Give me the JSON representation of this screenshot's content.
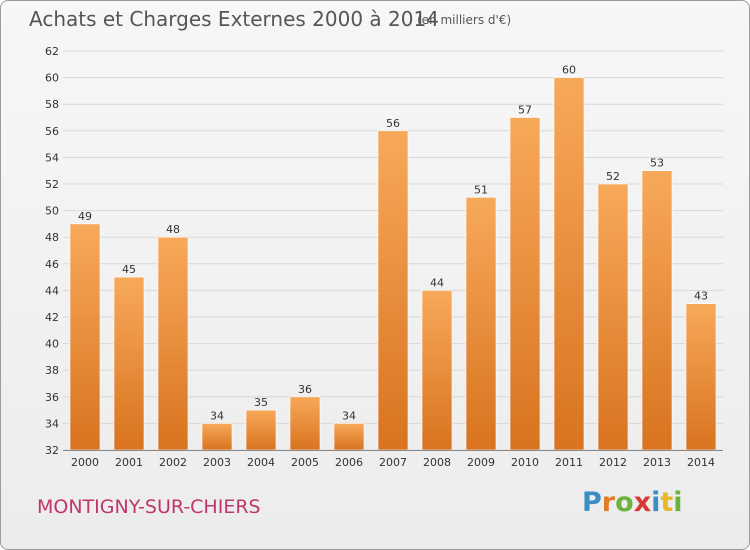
{
  "header": {
    "title": "Achats et Charges Externes 2000 à 2014",
    "unit": "(en milliers d'€)"
  },
  "footer": {
    "city": "MONTIGNY-SUR-CHIERS",
    "logo": [
      "P",
      "r",
      "o",
      "x",
      "i",
      "t",
      "i"
    ],
    "logo_colors": [
      "#3b8ec4",
      "#e07b27",
      "#6bb33d",
      "#d63a37",
      "#3b8ec4",
      "#e9b72a",
      "#6bb33d"
    ]
  },
  "colors": {
    "bar_light": "#f7a95a",
    "bar_dark": "#d9731f",
    "grid": "#d8d8d8",
    "axis_text": "#333333"
  },
  "chart_data": {
    "type": "bar",
    "title": "Achats et Charges Externes 2000 à 2014",
    "subtitle": "(en milliers d'€)",
    "xlabel": "",
    "ylabel": "",
    "ylim": [
      32,
      62
    ],
    "ytick_step": 2,
    "grid": true,
    "categories": [
      "2000",
      "2001",
      "2002",
      "2003",
      "2004",
      "2005",
      "2006",
      "2007",
      "2008",
      "2009",
      "2010",
      "2011",
      "2012",
      "2013",
      "2014"
    ],
    "values": [
      49,
      45,
      48,
      34,
      35,
      36,
      34,
      56,
      44,
      51,
      57,
      60,
      52,
      53,
      43
    ]
  }
}
